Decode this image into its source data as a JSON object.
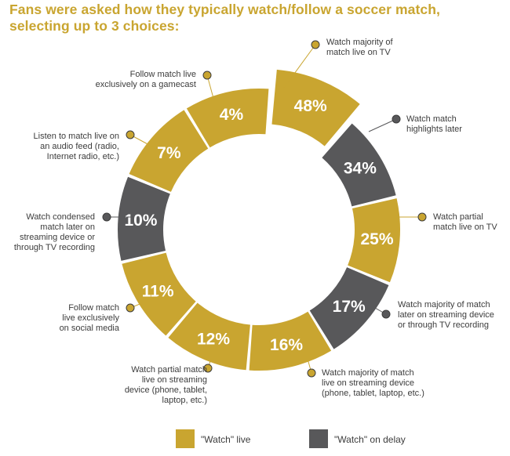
{
  "title_lines": [
    "Fans were asked how they typically watch/follow a soccer match,",
    "selecting up to 3 choices:"
  ],
  "colors": {
    "live": "#c9a530",
    "delay": "#58585a",
    "title": "#c9a530",
    "text": "#3c3c3c"
  },
  "chart_data": {
    "type": "pie",
    "variant": "exploded-donut",
    "title": "Fans were asked how they typically watch/follow a soccer match, selecting up to 3 choices:",
    "unit": "%",
    "legend": [
      {
        "key": "live",
        "label": "\"Watch\" live"
      },
      {
        "key": "delay",
        "label": "\"Watch\" on delay"
      }
    ],
    "slices": [
      {
        "value": 48,
        "label": "48%",
        "category": "live",
        "exploded": true,
        "annotation": [
          "Watch majority of",
          "match live on TV"
        ]
      },
      {
        "value": 34,
        "label": "34%",
        "category": "delay",
        "annotation": [
          "Watch match",
          "highlights later"
        ]
      },
      {
        "value": 25,
        "label": "25%",
        "category": "live",
        "annotation": [
          "Watch partial",
          "match live on TV"
        ]
      },
      {
        "value": 17,
        "label": "17%",
        "category": "delay",
        "annotation": [
          "Watch majority of match",
          "later on streaming device",
          "or through TV recording"
        ]
      },
      {
        "value": 16,
        "label": "16%",
        "category": "live",
        "annotation": [
          "Watch majority of match",
          "live on streaming device",
          "(phone, tablet, laptop, etc.)"
        ]
      },
      {
        "value": 12,
        "label": "12%",
        "category": "live",
        "annotation": [
          "Watch partial match",
          "live on streaming",
          "device (phone, tablet,",
          "laptop, etc.)"
        ]
      },
      {
        "value": 11,
        "label": "11%",
        "category": "live",
        "annotation": [
          "Follow match",
          "live exclusively",
          "on social media"
        ]
      },
      {
        "value": 10,
        "label": "10%",
        "category": "delay",
        "annotation": [
          "Watch condensed",
          "match later on",
          "streaming device or",
          "through TV recording"
        ]
      },
      {
        "value": 7,
        "label": "7%",
        "category": "live",
        "annotation": [
          "Listen to match live on",
          "an audio feed (radio,",
          "Internet radio, etc.)"
        ]
      },
      {
        "value": 4,
        "label": "4%",
        "category": "live",
        "annotation": [
          "Follow match live",
          "exclusively on a gamecast"
        ]
      }
    ]
  }
}
